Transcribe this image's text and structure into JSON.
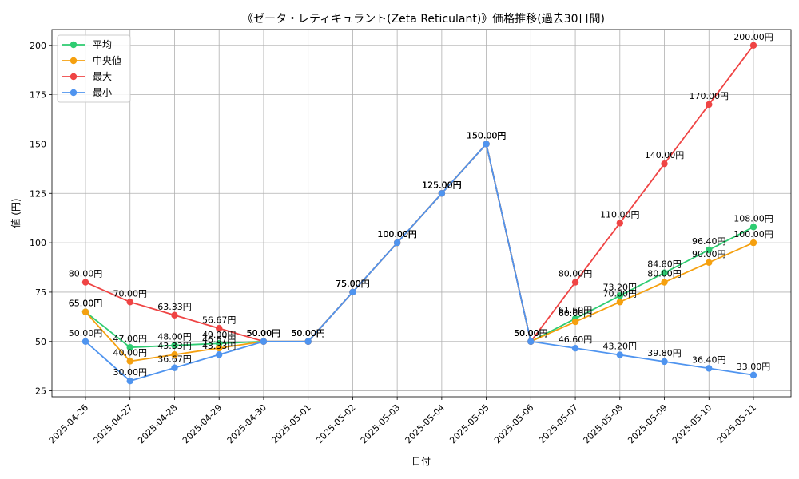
{
  "chart_data": {
    "type": "line",
    "title": "《ゼータ・レティキュラント(Zeta Reticulant)》価格推移(過去30日間)",
    "xlabel": "日付",
    "ylabel": "値 (円)",
    "ylim": [
      22,
      208
    ],
    "yticks": [
      25,
      50,
      75,
      100,
      125,
      150,
      175,
      200
    ],
    "grid": true,
    "legend_position": "top-left",
    "categories": [
      "2025-04-26",
      "2025-04-27",
      "2025-04-28",
      "2025-04-29",
      "2025-04-30",
      "2025-05-01",
      "2025-05-02",
      "2025-05-03",
      "2025-05-04",
      "2025-05-05",
      "2025-05-06",
      "2025-05-07",
      "2025-05-08",
      "2025-05-09",
      "2025-05-10",
      "2025-05-11"
    ],
    "series": [
      {
        "name": "平均",
        "color": "#2ecc71",
        "values": [
          65,
          47,
          48,
          49,
          50,
          50,
          75,
          100,
          125,
          150,
          50,
          61.6,
          73.2,
          84.8,
          96.4,
          108
        ],
        "labels": [
          "65.00円",
          "47.00円",
          "48.00円",
          "49.00円",
          "50.00円",
          "50.00円",
          "75.00円",
          "100.00円",
          "125.00円",
          "150.00円",
          "50.00円",
          "61.60円",
          "73.20円",
          "84.80円",
          "96.40円",
          "108.00円"
        ]
      },
      {
        "name": "中央値",
        "color": "#f5a00f",
        "values": [
          65,
          40,
          43.33,
          46.67,
          50,
          50,
          75,
          100,
          125,
          150,
          50,
          60,
          70,
          80,
          90,
          100
        ],
        "labels": [
          "65.00円",
          "40.00円",
          "43.33円",
          "46.67円",
          "50.00円",
          "50.00円",
          "75.00円",
          "100.00円",
          "125.00円",
          "150.00円",
          "50.00円",
          "60.00円",
          "70.00円",
          "80.00円",
          "90.00円",
          "100.00円"
        ]
      },
      {
        "name": "最大",
        "color": "#ef4444",
        "values": [
          80,
          70,
          63.33,
          56.67,
          50,
          50,
          75,
          100,
          125,
          150,
          50,
          80,
          110,
          140,
          170,
          200
        ],
        "labels": [
          "80.00円",
          "70.00円",
          "63.33円",
          "56.67円",
          "50.00円",
          "50.00円",
          "75.00円",
          "100.00円",
          "125.00円",
          "150.00円",
          "50.00円",
          "80.00円",
          "110.00円",
          "140.00円",
          "170.00円",
          "200.00円"
        ]
      },
      {
        "name": "最小",
        "color": "#4f94ef",
        "values": [
          50,
          30,
          36.67,
          43.33,
          50,
          50,
          75,
          100,
          125,
          150,
          50,
          46.6,
          43.2,
          39.8,
          36.4,
          33
        ],
        "labels": [
          "50.00円",
          "30.00円",
          "36.67円",
          "43.33円",
          "50.00円",
          "50.00円",
          "75.00円",
          "100.00円",
          "125.00円",
          "150.00円",
          "50.00円",
          "46.60円",
          "43.20円",
          "39.80円",
          "36.40円",
          "33.00円"
        ]
      }
    ]
  }
}
